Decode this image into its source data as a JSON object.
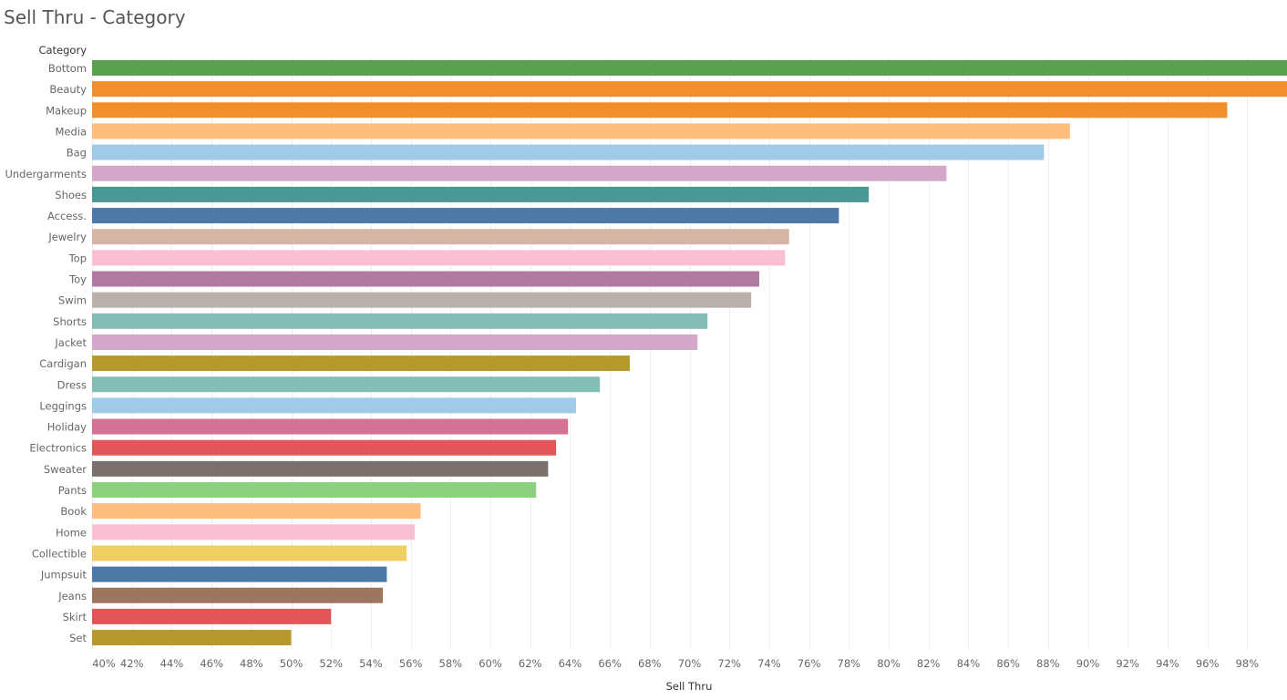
{
  "chart_data": {
    "type": "bar",
    "orientation": "horizontal",
    "title": "Sell Thru - Category",
    "row_header": "Category",
    "xlabel": "Sell Thru",
    "ylabel": "Category",
    "xlim": [
      40,
      100
    ],
    "grid": true,
    "ticks": [
      40,
      42,
      44,
      46,
      48,
      50,
      52,
      54,
      56,
      58,
      60,
      62,
      64,
      66,
      68,
      70,
      72,
      74,
      76,
      78,
      80,
      82,
      84,
      86,
      88,
      90,
      92,
      94,
      96,
      98
    ],
    "tick_suffix": "%",
    "categories": [
      "Bottom",
      "Beauty",
      "Makeup",
      "Media",
      "Bag",
      "Undergarments",
      "Shoes",
      "Access.",
      "Jewelry",
      "Top",
      "Toy",
      "Swim",
      "Shorts",
      "Jacket",
      "Cardigan",
      "Dress",
      "Leggings",
      "Holiday",
      "Electronics",
      "Sweater",
      "Pants",
      "Book",
      "Home",
      "Collectible",
      "Jumpsuit",
      "Jeans",
      "Skirt",
      "Set"
    ],
    "values": [
      100,
      100,
      97,
      89.1,
      87.8,
      82.9,
      79,
      77.5,
      75,
      74.8,
      73.5,
      73.1,
      70.9,
      70.4,
      67,
      65.5,
      64.3,
      63.9,
      63.3,
      62.9,
      62.3,
      56.5,
      56.2,
      55.8,
      54.8,
      54.6,
      52,
      50
    ],
    "colors": [
      "#59a14f",
      "#f28e2b",
      "#f28e2b",
      "#ffbe7d",
      "#a0cbe8",
      "#d4a6c8",
      "#499894",
      "#4e79a7",
      "#d7b5a6",
      "#fabfd2",
      "#b07aa1",
      "#bab0ac",
      "#86bcb6",
      "#d4a6c8",
      "#b6992d",
      "#86bcb6",
      "#a0cbe8",
      "#d37295",
      "#e15759",
      "#79706e",
      "#8cd17d",
      "#ffbe7d",
      "#fabfd2",
      "#f1ce63",
      "#4e79a7",
      "#9d7660",
      "#e15759",
      "#b6992d"
    ]
  }
}
